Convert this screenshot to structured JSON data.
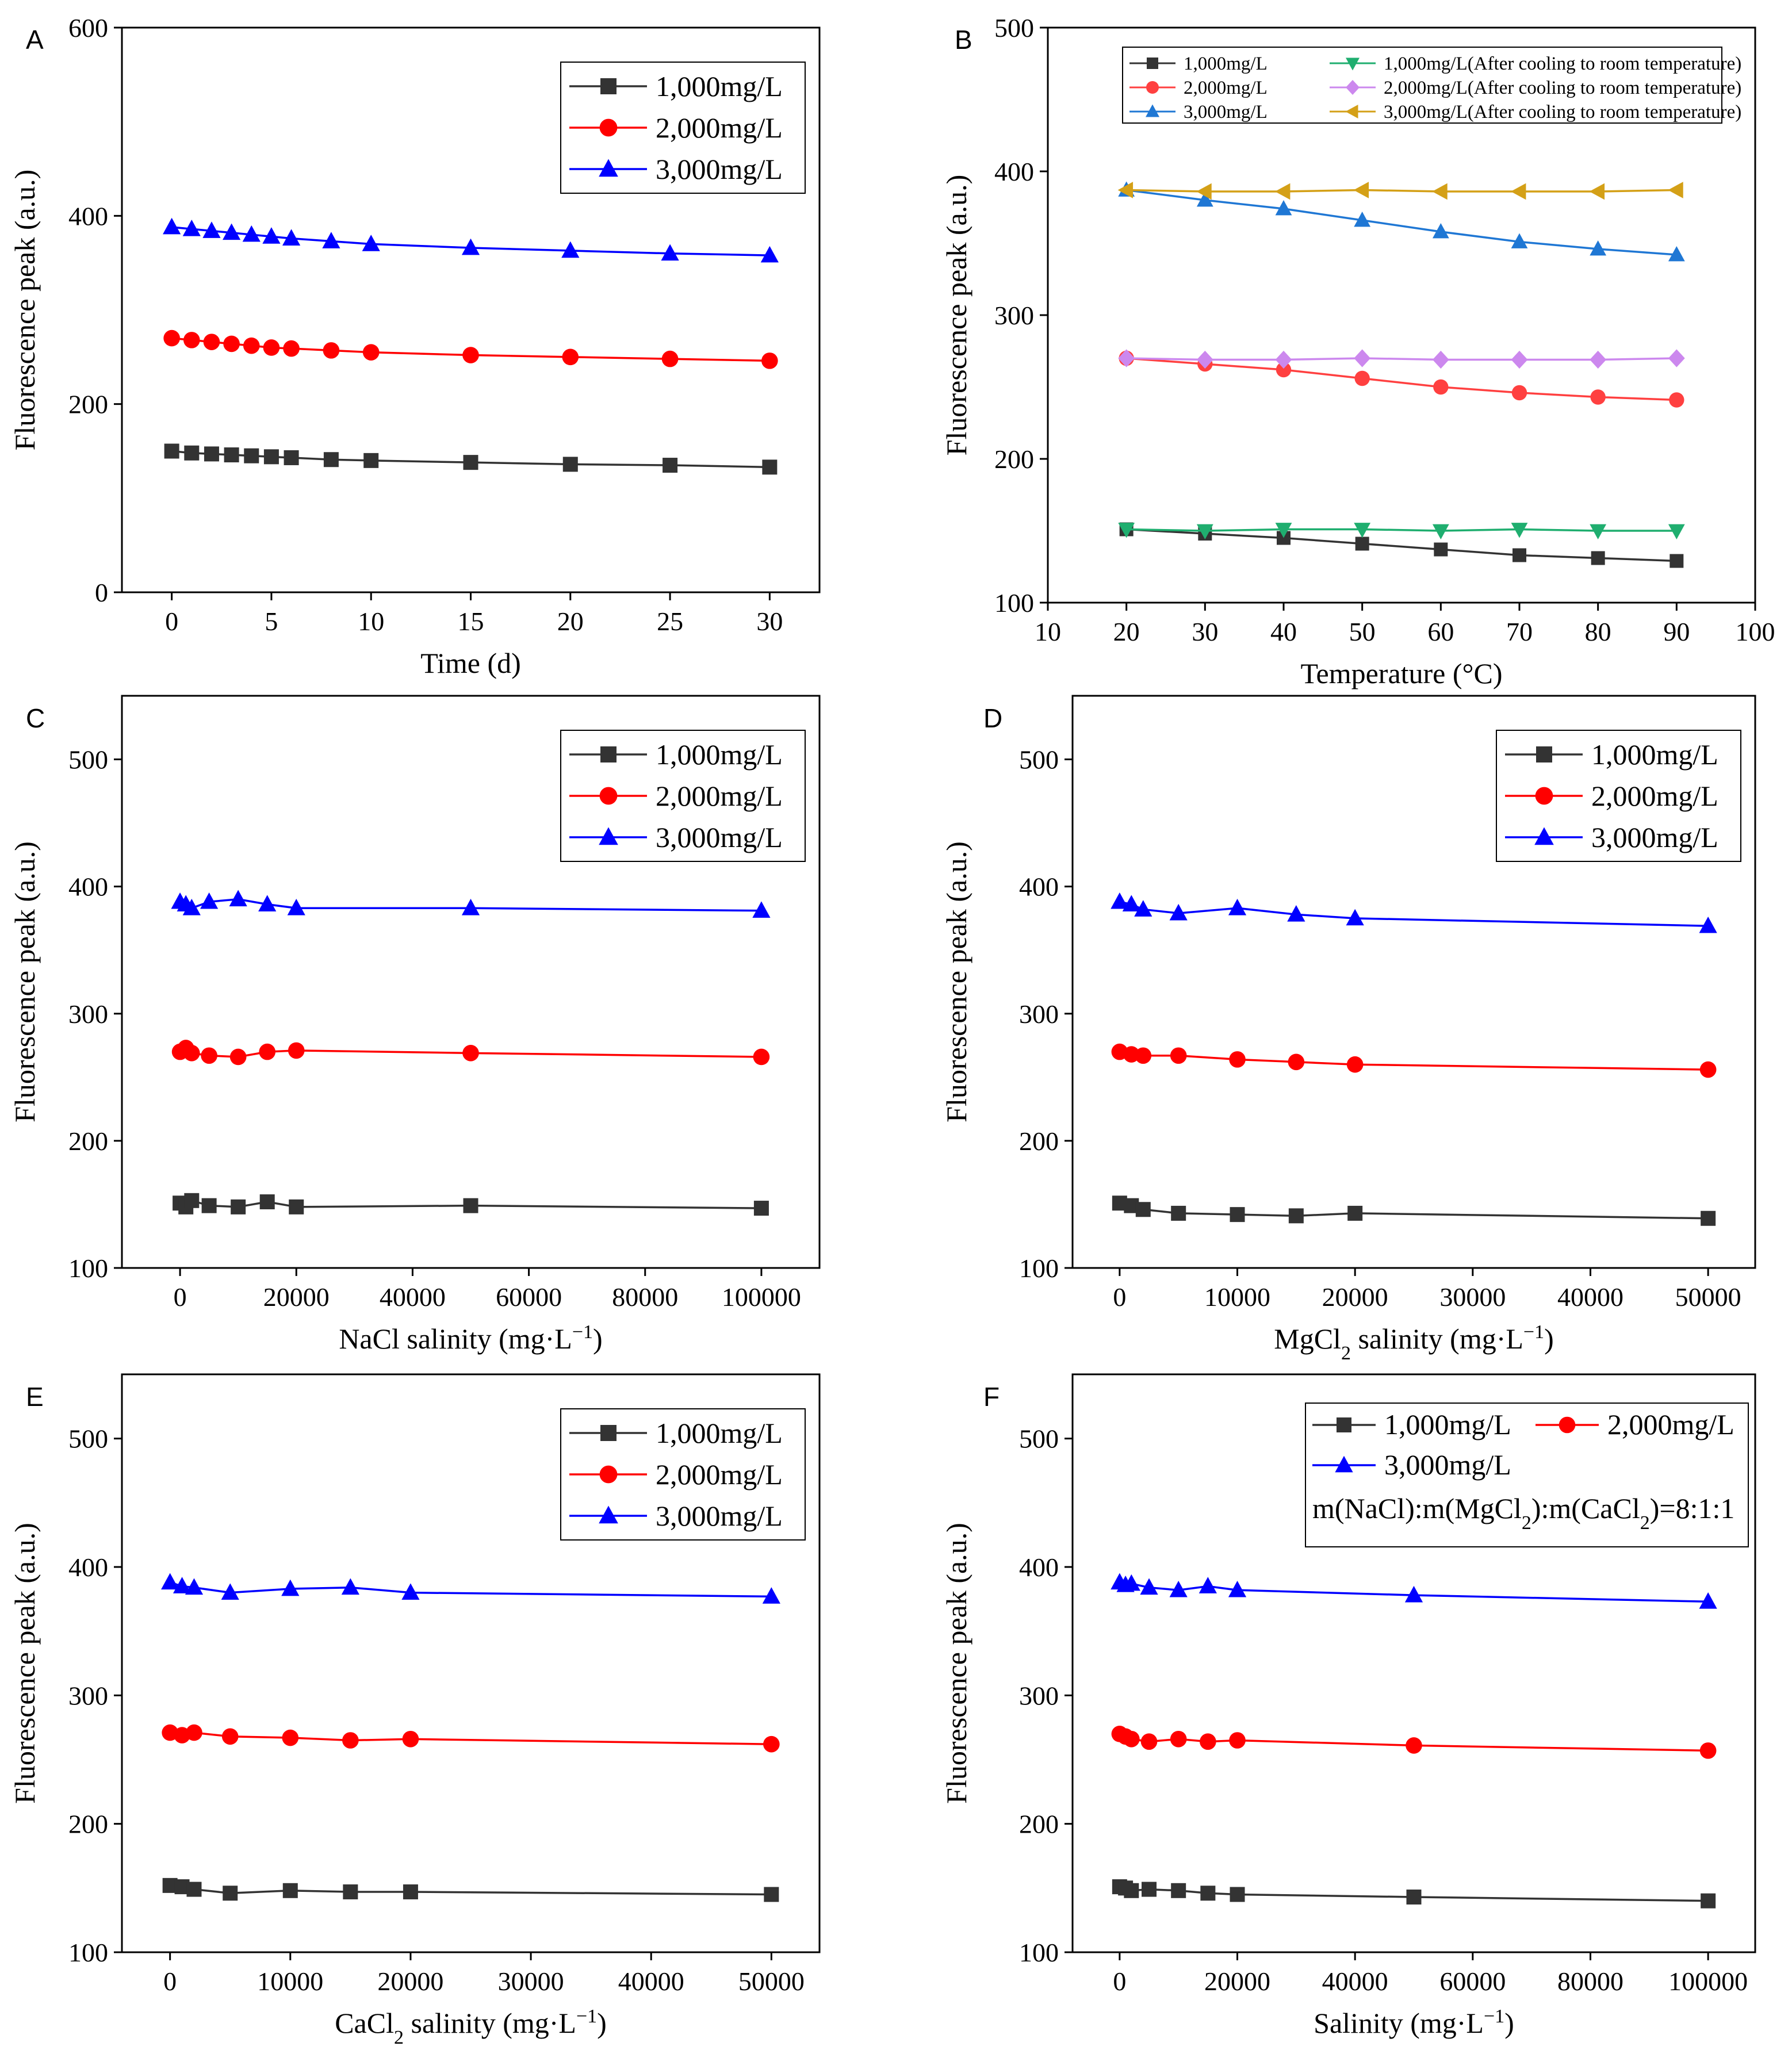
{
  "figure": {
    "background": "#ffffff"
  },
  "chart_data": [
    {
      "panel": "A",
      "type": "line",
      "xlabel": "Time (d)",
      "ylabel": "Fluorescence peak (a.u.)",
      "xlim": [
        -2.5,
        32.5
      ],
      "ylim": [
        0,
        600
      ],
      "xticks": [
        0,
        5,
        10,
        15,
        20,
        25,
        30
      ],
      "yticks": [
        0,
        200,
        400,
        600
      ],
      "legend": {
        "position": "top-right",
        "columns": 1
      },
      "series": [
        {
          "name": "1,000mg/L",
          "color": "#333333",
          "marker": "square",
          "x": [
            0,
            1,
            2,
            3,
            4,
            5,
            6,
            8,
            10,
            15,
            20,
            25,
            30
          ],
          "y": [
            150,
            148,
            147,
            146,
            145,
            144,
            143,
            141,
            140,
            138,
            136,
            135,
            133
          ]
        },
        {
          "name": "2,000mg/L",
          "color": "#ff0000",
          "marker": "circle",
          "x": [
            0,
            1,
            2,
            3,
            4,
            5,
            6,
            8,
            10,
            15,
            20,
            25,
            30
          ],
          "y": [
            270,
            268,
            266,
            264,
            262,
            260,
            259,
            257,
            255,
            252,
            250,
            248,
            246
          ]
        },
        {
          "name": "3,000mg/L",
          "color": "#0000ff",
          "marker": "triangle",
          "x": [
            0,
            1,
            2,
            3,
            4,
            5,
            6,
            8,
            10,
            15,
            20,
            25,
            30
          ],
          "y": [
            388,
            386,
            384,
            382,
            380,
            378,
            376,
            373,
            370,
            366,
            363,
            360,
            358
          ]
        }
      ]
    },
    {
      "panel": "B",
      "type": "line",
      "xlabel": "Temperature (°C)",
      "ylabel": "Fluorescence peak (a.u.)",
      "xlim": [
        10,
        100
      ],
      "ylim": [
        100,
        500
      ],
      "xticks": [
        10,
        20,
        30,
        40,
        50,
        60,
        70,
        80,
        90,
        100
      ],
      "yticks": [
        100,
        200,
        300,
        400,
        500
      ],
      "legend": {
        "position": "top",
        "columns": 2,
        "small": true
      },
      "series": [
        {
          "name": "1,000mg/L",
          "color": "#333333",
          "marker": "square",
          "x": [
            20,
            30,
            40,
            50,
            60,
            70,
            80,
            90
          ],
          "y": [
            151,
            148,
            145,
            141,
            137,
            133,
            131,
            129
          ]
        },
        {
          "name": "2,000mg/L",
          "color": "#ff4040",
          "marker": "circle",
          "x": [
            20,
            30,
            40,
            50,
            60,
            70,
            80,
            90
          ],
          "y": [
            270,
            266,
            262,
            256,
            250,
            246,
            243,
            241
          ]
        },
        {
          "name": "3,000mg/L",
          "color": "#1f77d4",
          "marker": "triangle",
          "x": [
            20,
            30,
            40,
            50,
            60,
            70,
            80,
            90
          ],
          "y": [
            387,
            380,
            374,
            366,
            358,
            351,
            346,
            342
          ]
        },
        {
          "name": "1,000mg/L(After cooling to room temperature)",
          "color": "#1fae6f",
          "marker": "triangle-down",
          "x": [
            20,
            30,
            40,
            50,
            60,
            70,
            80,
            90
          ],
          "y": [
            151,
            150,
            151,
            151,
            150,
            151,
            150,
            150
          ]
        },
        {
          "name": "2,000mg/L(After cooling to room temperature)",
          "color": "#cc88ee",
          "marker": "diamond",
          "x": [
            20,
            30,
            40,
            50,
            60,
            70,
            80,
            90
          ],
          "y": [
            270,
            269,
            269,
            270,
            269,
            269,
            269,
            270
          ]
        },
        {
          "name": "3,000mg/L(After cooling to room temperature)",
          "color": "#d4a017",
          "marker": "triangle-left",
          "x": [
            20,
            30,
            40,
            50,
            60,
            70,
            80,
            90
          ],
          "y": [
            387,
            386,
            386,
            387,
            386,
            386,
            386,
            387
          ]
        }
      ]
    },
    {
      "panel": "C",
      "type": "line",
      "xlabel": "NaCl salinity (mg·L",
      "xlabel_sup": "−1",
      "xlabel_end": ")",
      "ylabel": "Fluorescence peak (a.u.)",
      "xlim": [
        -10000,
        110000
      ],
      "ylim": [
        100,
        550
      ],
      "xticks": [
        0,
        20000,
        40000,
        60000,
        80000,
        100000
      ],
      "yticks": [
        100,
        200,
        300,
        400,
        500
      ],
      "legend": {
        "position": "top-right",
        "columns": 1
      },
      "series": [
        {
          "name": "1,000mg/L",
          "color": "#333333",
          "marker": "square",
          "x": [
            0,
            1000,
            2000,
            5000,
            10000,
            15000,
            20000,
            50000,
            100000
          ],
          "y": [
            151,
            148,
            153,
            149,
            148,
            152,
            148,
            149,
            147
          ]
        },
        {
          "name": "2,000mg/L",
          "color": "#ff0000",
          "marker": "circle",
          "x": [
            0,
            1000,
            2000,
            5000,
            10000,
            15000,
            20000,
            50000,
            100000
          ],
          "y": [
            270,
            273,
            269,
            267,
            266,
            270,
            271,
            269,
            266
          ]
        },
        {
          "name": "3,000mg/L",
          "color": "#0000ff",
          "marker": "triangle",
          "x": [
            0,
            1000,
            2000,
            5000,
            10000,
            15000,
            20000,
            50000,
            100000
          ],
          "y": [
            388,
            386,
            383,
            388,
            390,
            386,
            383,
            383,
            381
          ]
        }
      ]
    },
    {
      "panel": "D",
      "type": "line",
      "xlabel": "MgCl",
      "xlabel_sub": "2",
      "xlabel_mid": " salinity (mg·L",
      "xlabel_sup": "−1",
      "xlabel_end": ")",
      "ylabel": "Fluorescence peak (a.u.)",
      "xlim": [
        -4000,
        54000
      ],
      "ylim": [
        100,
        550
      ],
      "xticks": [
        0,
        10000,
        20000,
        30000,
        40000,
        50000
      ],
      "yticks": [
        100,
        200,
        300,
        400,
        500
      ],
      "legend": {
        "position": "top-right",
        "columns": 1
      },
      "series": [
        {
          "name": "1,000mg/L",
          "color": "#333333",
          "marker": "square",
          "x": [
            0,
            1000,
            2000,
            5000,
            10000,
            15000,
            20000,
            50000
          ],
          "y": [
            151,
            149,
            146,
            143,
            142,
            141,
            143,
            139
          ]
        },
        {
          "name": "2,000mg/L",
          "color": "#ff0000",
          "marker": "circle",
          "x": [
            0,
            1000,
            2000,
            5000,
            10000,
            15000,
            20000,
            50000
          ],
          "y": [
            270,
            268,
            267,
            267,
            264,
            262,
            260,
            256
          ]
        },
        {
          "name": "3,000mg/L",
          "color": "#0000ff",
          "marker": "triangle",
          "x": [
            0,
            1000,
            2000,
            5000,
            10000,
            15000,
            20000,
            50000
          ],
          "y": [
            388,
            386,
            382,
            379,
            383,
            378,
            375,
            369
          ]
        }
      ]
    },
    {
      "panel": "E",
      "type": "line",
      "xlabel": "CaCl",
      "xlabel_sub": "2",
      "xlabel_mid": " salinity (mg·L",
      "xlabel_sup": "−1",
      "xlabel_end": ")",
      "ylabel": "Fluorescence peak (a.u.)",
      "xlim": [
        -4000,
        54000
      ],
      "ylim": [
        100,
        550
      ],
      "xticks": [
        0,
        10000,
        20000,
        30000,
        40000,
        50000
      ],
      "yticks": [
        100,
        200,
        300,
        400,
        500
      ],
      "legend": {
        "position": "top-right",
        "columns": 1
      },
      "series": [
        {
          "name": "1,000mg/L",
          "color": "#333333",
          "marker": "square",
          "x": [
            0,
            1000,
            2000,
            5000,
            10000,
            15000,
            20000,
            50000
          ],
          "y": [
            152,
            151,
            149,
            146,
            148,
            147,
            147,
            145
          ]
        },
        {
          "name": "2,000mg/L",
          "color": "#ff0000",
          "marker": "circle",
          "x": [
            0,
            1000,
            2000,
            5000,
            10000,
            15000,
            20000,
            50000
          ],
          "y": [
            271,
            269,
            271,
            268,
            267,
            265,
            266,
            262
          ]
        },
        {
          "name": "3,000mg/L",
          "color": "#0000ff",
          "marker": "triangle",
          "x": [
            0,
            1000,
            2000,
            5000,
            10000,
            15000,
            20000,
            50000
          ],
          "y": [
            388,
            385,
            384,
            380,
            383,
            384,
            380,
            377
          ]
        }
      ]
    },
    {
      "panel": "F",
      "type": "line",
      "xlabel": "Salinity (mg·L",
      "xlabel_sup": "−1",
      "xlabel_end": ")",
      "ylabel": "Fluorescence peak (a.u.)",
      "xlim": [
        -8000,
        108000
      ],
      "ylim": [
        100,
        550
      ],
      "xticks": [
        0,
        20000,
        40000,
        60000,
        80000,
        100000
      ],
      "yticks": [
        100,
        200,
        300,
        400,
        500
      ],
      "legend": {
        "position": "top-right",
        "columns": 2
      },
      "annotation": {
        "pre": "m(NaCl):m(MgCl",
        "sub1": "2",
        "mid": "):m(CaCl",
        "sub2": "2",
        "post": ")=8:1:1"
      },
      "series": [
        {
          "name": "1,000mg/L",
          "color": "#333333",
          "marker": "square",
          "x": [
            0,
            1000,
            2000,
            5000,
            10000,
            15000,
            20000,
            50000,
            100000
          ],
          "y": [
            151,
            150,
            148,
            149,
            148,
            146,
            145,
            143,
            140
          ]
        },
        {
          "name": "2,000mg/L",
          "color": "#ff0000",
          "marker": "circle",
          "x": [
            0,
            1000,
            2000,
            5000,
            10000,
            15000,
            20000,
            50000,
            100000
          ],
          "y": [
            270,
            268,
            266,
            264,
            266,
            264,
            265,
            261,
            257
          ]
        },
        {
          "name": "3,000mg/L",
          "color": "#0000ff",
          "marker": "triangle",
          "x": [
            0,
            1000,
            2000,
            5000,
            10000,
            15000,
            20000,
            50000,
            100000
          ],
          "y": [
            388,
            386,
            387,
            384,
            382,
            385,
            382,
            378,
            373
          ]
        }
      ]
    }
  ]
}
